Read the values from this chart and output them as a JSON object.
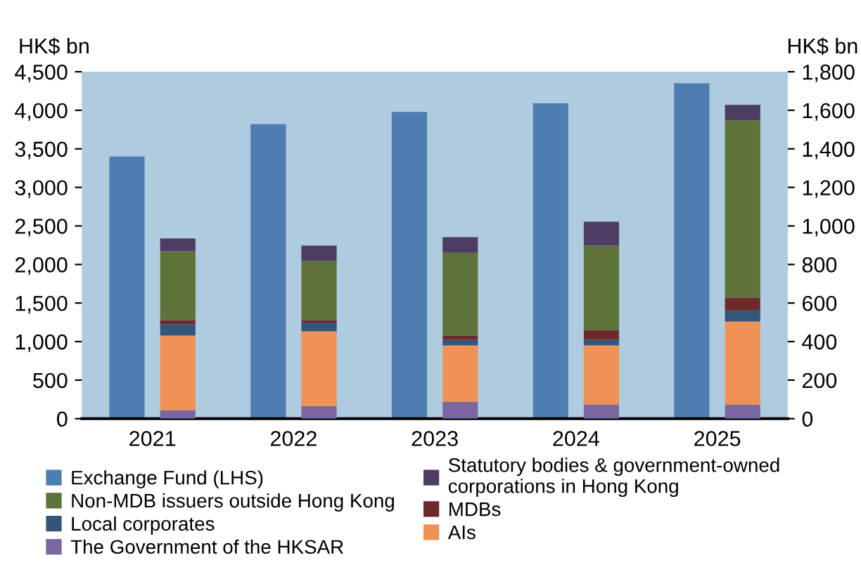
{
  "chart_data": {
    "type": "bar",
    "ylabel": "HK$ bn",
    "y2label": "HK$ bn",
    "categories": [
      "2021",
      "2022",
      "2023",
      "2024",
      "2025"
    ],
    "series": [
      {
        "name": "Exchange Fund (LHS)",
        "color": "#4e7db1",
        "values": [
          3400,
          3820,
          3980,
          4090,
          4350
        ]
      },
      {
        "name": "The Government of the HKSAR",
        "color": "#7b67a0",
        "axis": "y2",
        "values": [
          44,
          66,
          88,
          73,
          73
        ]
      },
      {
        "name": "AIs",
        "color": "#f09155",
        "axis": "y2",
        "values": [
          387,
          387,
          292,
          307,
          431
        ]
      },
      {
        "name": "Local corporates",
        "color": "#34567a",
        "axis": "y2",
        "values": [
          58,
          46,
          29,
          29,
          58
        ]
      },
      {
        "name": "MDBs",
        "color": "#6e2a2a",
        "axis": "y2",
        "values": [
          22,
          12,
          22,
          51,
          66
        ]
      },
      {
        "name": "Non-MDB issuers outside Hong Kong",
        "color": "#5e7339",
        "axis": "y2",
        "values": [
          358,
          307,
          430,
          438,
          920
        ]
      },
      {
        "name": "Statutory bodies & government-owned corporations in Hong Kong",
        "color": "#4e3d63",
        "axis": "y2",
        "values": [
          66,
          80,
          81,
          124,
          80
        ]
      }
    ],
    "stacked": true,
    "ylim": [
      0,
      4500
    ],
    "yticks": [
      0,
      500,
      {
        "value": 1000,
        "label": "1,000"
      },
      {
        "value": 1500,
        "label": "1,500"
      },
      {
        "value": 2000,
        "label": "2,000"
      },
      {
        "value": 2500,
        "label": "2,500"
      },
      {
        "value": 3000,
        "label": "3,000"
      },
      {
        "value": 3500,
        "label": "3,500"
      },
      {
        "value": 4000,
        "label": "4,000"
      },
      {
        "value": 4500,
        "label": "4,500"
      }
    ],
    "y2lim": [
      0,
      1800
    ],
    "y2ticks": [
      0,
      200,
      400,
      600,
      800,
      {
        "value": 1000,
        "label": "1,000"
      },
      {
        "value": 1200,
        "label": "1,200"
      },
      {
        "value": 1400,
        "label": "1,400"
      },
      {
        "value": 1600,
        "label": "1,600"
      },
      {
        "value": 1800,
        "label": "1,800"
      }
    ],
    "grid": false,
    "legend": "bottom"
  }
}
